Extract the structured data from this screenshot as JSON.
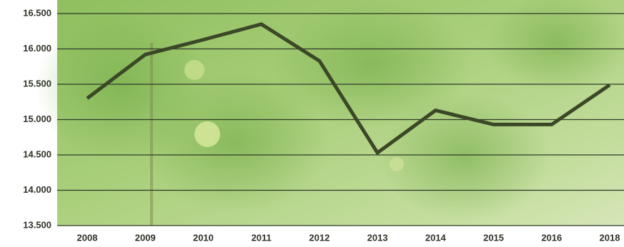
{
  "chart_data": {
    "type": "line",
    "categories": [
      "2008",
      "2009",
      "2010",
      "2011",
      "2012",
      "2013",
      "2014",
      "2015",
      "2016",
      "2018"
    ],
    "values": [
      15300,
      15920,
      16130,
      16350,
      15830,
      14530,
      15130,
      14930,
      14930,
      15490
    ],
    "color": "#3b4727",
    "ylim": [
      13500,
      16500
    ],
    "yticks": [
      {
        "value": 13500,
        "label": "13.500"
      },
      {
        "value": 14000,
        "label": "14.000"
      },
      {
        "value": 14500,
        "label": "14.500"
      },
      {
        "value": 15000,
        "label": "15.000"
      },
      {
        "value": 15500,
        "label": "15.500"
      },
      {
        "value": 16000,
        "label": "16.000"
      },
      {
        "value": 16500,
        "label": "16.500"
      }
    ],
    "grid": true
  }
}
